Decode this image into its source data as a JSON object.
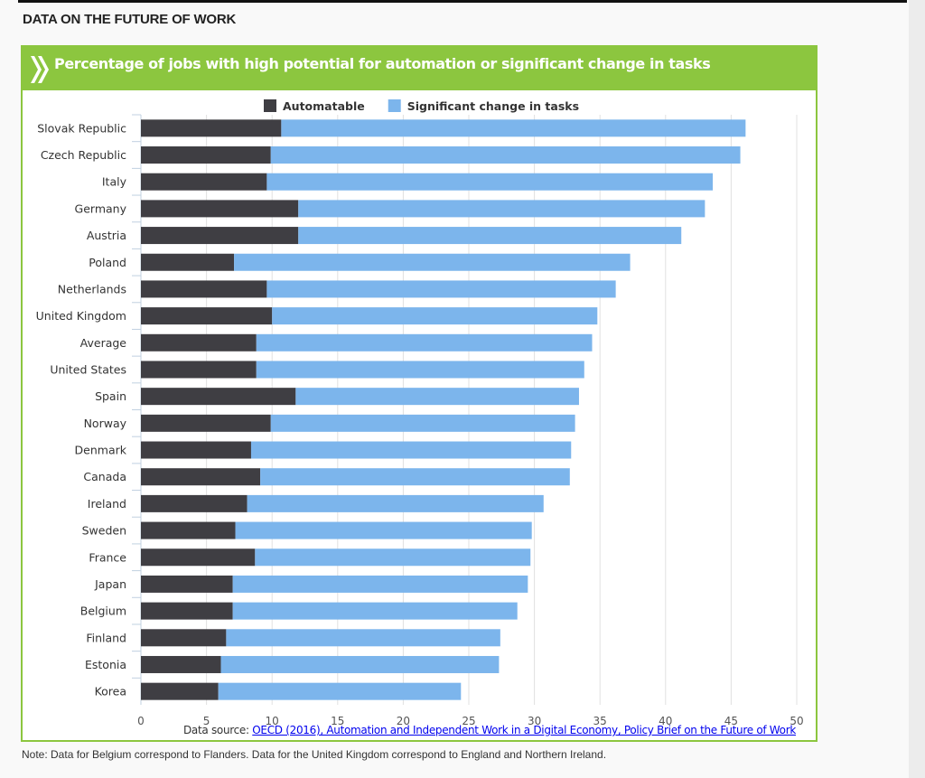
{
  "section_title": "DATA ON THE FUTURE OF WORK",
  "panel_title": "Percentage of jobs with high potential for automation or significant change in tasks",
  "source_label": "Data source:",
  "source_link": "OECD (2016), Automation and Independent Work in a Digital Economy, Policy Brief on the Future of Work",
  "note": "Note: Data for Belgium correspond to Flanders. Data for the United Kingdom correspond to England and Northern Ireland.",
  "colors": {
    "accent": "#8cc63f",
    "automatable": "#3f3e43",
    "significant": "#7cb5ec"
  },
  "chart_data": {
    "type": "bar",
    "orientation": "horizontal",
    "stacked": true,
    "legend": "top-center",
    "grid": true,
    "xlim": [
      0,
      50
    ],
    "xticks": [
      0,
      5,
      10,
      15,
      20,
      25,
      30,
      35,
      40,
      45,
      50
    ],
    "categories": [
      "Slovak Republic",
      "Czech Republic",
      "Italy",
      "Germany",
      "Austria",
      "Poland",
      "Netherlands",
      "United Kingdom",
      "Average",
      "United States",
      "Spain",
      "Norway",
      "Denmark",
      "Canada",
      "Ireland",
      "Sweden",
      "France",
      "Japan",
      "Belgium",
      "Finland",
      "Estonia",
      "Korea"
    ],
    "series": [
      {
        "name": "Automatable",
        "values": [
          10.7,
          9.9,
          9.6,
          12.0,
          12.0,
          7.1,
          9.6,
          10.0,
          8.8,
          8.8,
          11.8,
          9.9,
          8.4,
          9.1,
          8.1,
          7.2,
          8.7,
          7.0,
          7.0,
          6.5,
          6.1,
          5.9
        ]
      },
      {
        "name": "Significant change in tasks",
        "values": [
          35.4,
          35.8,
          34.0,
          31.0,
          29.2,
          30.2,
          26.6,
          24.8,
          25.6,
          25.0,
          21.6,
          23.2,
          24.4,
          23.6,
          22.6,
          22.6,
          21.0,
          22.5,
          21.7,
          20.9,
          21.2,
          18.5
        ]
      }
    ]
  }
}
